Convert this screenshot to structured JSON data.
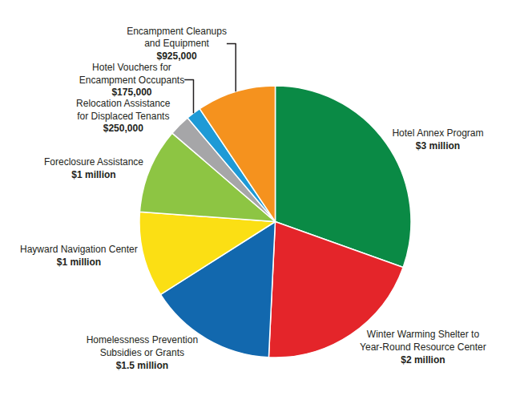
{
  "chart_data": {
    "type": "pie",
    "categories": [
      "Hotel Annex Program",
      "Winter Warming Shelter to\nYear-Round Resource Center",
      "Homelessness Prevention\nSubsidies or Grants",
      "Hayward Navigation Center",
      "Foreclosure Assistance",
      "Relocation Assistance\nfor Displaced Tenants",
      "Hotel Vouchers for\nEncampment Occupants",
      "Encampment Cleanups\nand Equipment"
    ],
    "values": [
      3000000,
      2000000,
      1500000,
      1000000,
      1000000,
      250000,
      175000,
      925000
    ],
    "value_labels": [
      "$3 million",
      "$2 million",
      "$1.5 million",
      "$1 million",
      "$1 million",
      "$250,000",
      "$175,000",
      "$925,000"
    ],
    "colors": [
      "#0a8a45",
      "#e4252a",
      "#1268ae",
      "#fbdf14",
      "#8dc543",
      "#a6a6a8",
      "#1e9ad6",
      "#f5921e"
    ],
    "data_labels": true
  }
}
